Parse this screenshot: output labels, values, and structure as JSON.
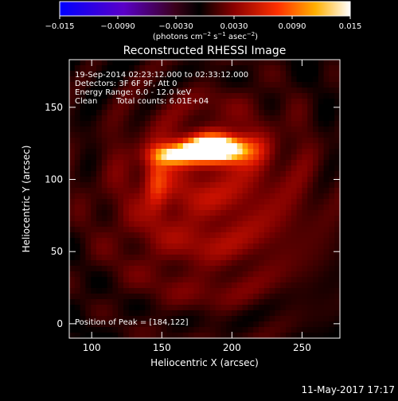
{
  "colorbar": {
    "ticks": [
      "−0.015",
      "−0.0090",
      "−0.0030",
      "0.0030",
      "0.0090",
      "0.015"
    ],
    "unit_label_main": "(photons cm",
    "unit_sup1": "−2",
    "unit_mid": " s",
    "unit_sup2": "−1",
    "unit_mid2": " asec",
    "unit_sup3": "−2",
    "unit_end": ")"
  },
  "chart_data": {
    "type": "heatmap",
    "title": "Reconstructed RHESSI Image",
    "xlabel": "Heliocentric X (arcsec)",
    "ylabel": "Heliocentric Y (arcsec)",
    "xlim": [
      84,
      277
    ],
    "ylim": [
      -10,
      183
    ],
    "xticks": [
      100,
      150,
      200,
      250
    ],
    "yticks": [
      0,
      50,
      100,
      150
    ],
    "peak": [
      184,
      122
    ],
    "sources": [
      {
        "x": 184,
        "y": 122,
        "sx": 14,
        "sy": 6,
        "amp": 1.0
      },
      {
        "x": 160,
        "y": 117,
        "sx": 12,
        "sy": 5,
        "amp": 0.7
      },
      {
        "x": 200,
        "y": 120,
        "sx": 14,
        "sy": 7,
        "amp": 0.5
      },
      {
        "x": 146,
        "y": 98,
        "sx": 6,
        "sy": 14,
        "amp": 0.35
      },
      {
        "x": 185,
        "y": 85,
        "sx": 60,
        "sy": 55,
        "amp": 0.35
      }
    ],
    "colorbar_range": [
      -0.015,
      0.015
    ]
  },
  "annotations": {
    "line1": "19-Sep-2014 02:23:12.000 to 02:33:12.000",
    "line2": "Detectors: 3F 6F 9F, Att 0",
    "line3": "Energy Range: 6.0 - 12.0 keV",
    "line4a": "Clean",
    "line4b": "Total counts: 6.01E+04",
    "peak_text": "Position of Peak = [184,122]"
  },
  "footer": {
    "timestamp": "11-May-2017 17:17"
  }
}
